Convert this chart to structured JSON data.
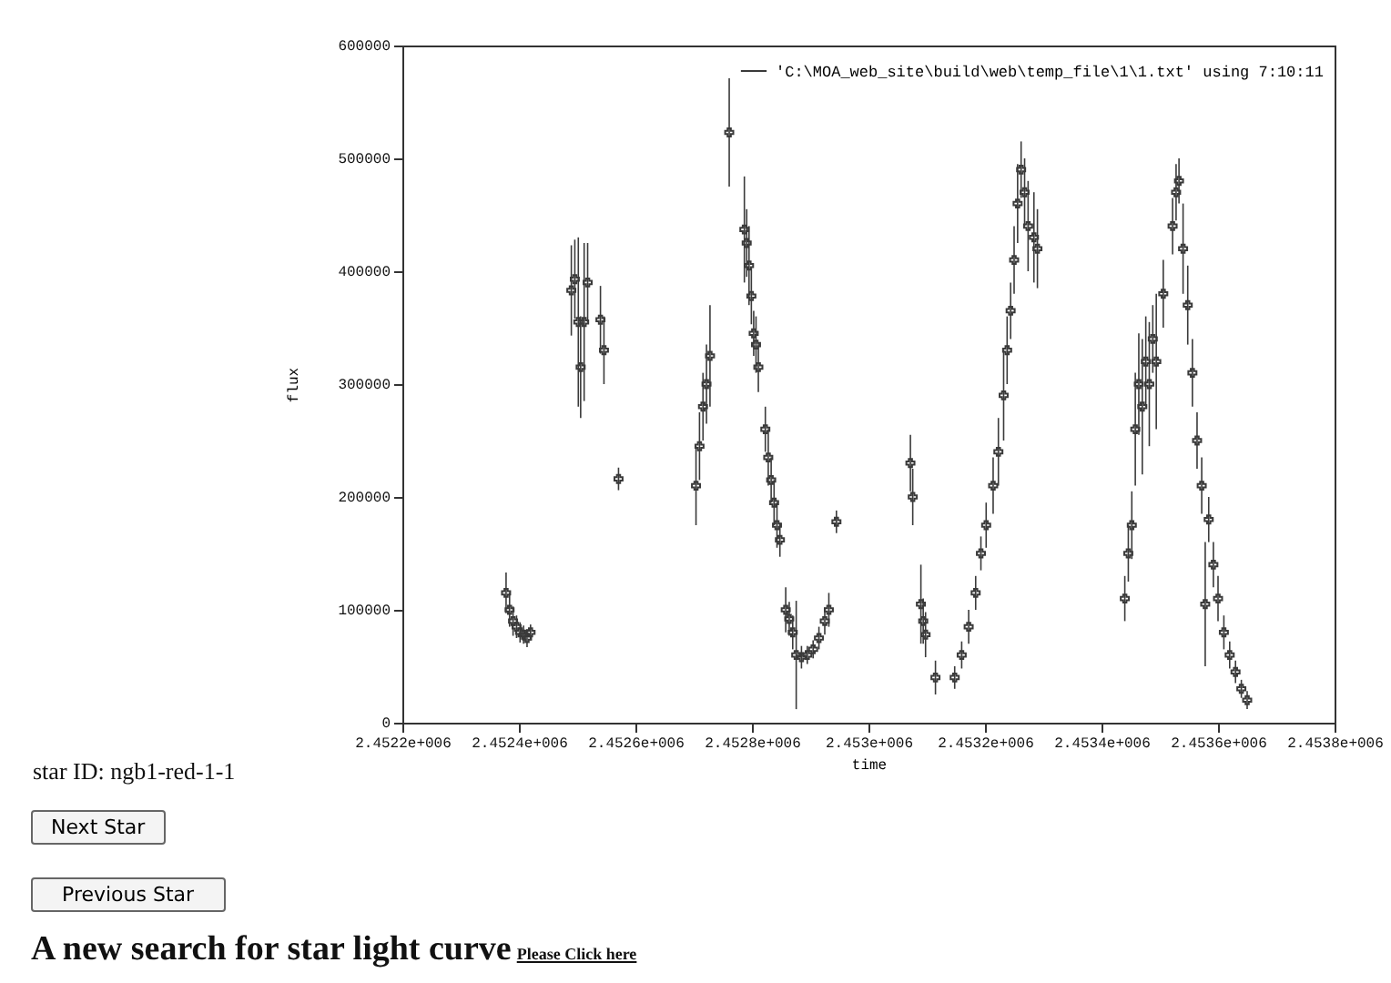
{
  "chart_data": {
    "type": "scatter",
    "xlabel": "time",
    "ylabel": "flux",
    "xlim": [
      2452200,
      2453800
    ],
    "xticks": [
      {
        "value": 2452200,
        "label": "2.4522e+006"
      },
      {
        "value": 2452400,
        "label": "2.4524e+006"
      },
      {
        "value": 2452600,
        "label": "2.4526e+006"
      },
      {
        "value": 2452800,
        "label": "2.4528e+006"
      },
      {
        "value": 2453000,
        "label": "2.453e+006"
      },
      {
        "value": 2453200,
        "label": "2.4532e+006"
      },
      {
        "value": 2453400,
        "label": "2.4534e+006"
      },
      {
        "value": 2453600,
        "label": "2.4536e+006"
      },
      {
        "value": 2453800,
        "label": "2.4538e+006"
      }
    ],
    "ylim": [
      0,
      600000
    ],
    "yticks": [
      0,
      100000,
      200000,
      300000,
      400000,
      500000,
      600000
    ],
    "marker": "cross",
    "legend": "top right",
    "annotations": [
      "star ID: ngb1-red-1-1",
      "Next Star",
      "Previous Star",
      "A new search for star light curve",
      "Please Click here"
    ],
    "series": [
      {
        "name": "'C:\\MOA_web_site\\build\\web\\temp_file\\1\\1.txt' using 7:10:11",
        "color": "#3a3a3a",
        "x": [
          2452378,
          2452384,
          2452390,
          2452396,
          2452402,
          2452408,
          2452414,
          2452420,
          2452490,
          2452496,
          2452502,
          2452506,
          2452512,
          2452518,
          2452540,
          2452546,
          2452571,
          2452704,
          2452710,
          2452716,
          2452722,
          2452728,
          2452761,
          2452787,
          2452791,
          2452795,
          2452799,
          2452803,
          2452807,
          2452811,
          2452823,
          2452828,
          2452833,
          2452838,
          2452843,
          2452848,
          2452858,
          2452864,
          2452870,
          2452876,
          2452885,
          2452895,
          2452905,
          2452915,
          2452925,
          2452932,
          2452945,
          2453072,
          2453076,
          2453090,
          2453094,
          2453098,
          2453115,
          2453148,
          2453160,
          2453172,
          2453184,
          2453193,
          2453202,
          2453214,
          2453223,
          2453232,
          2453238,
          2453244,
          2453250,
          2453256,
          2453262,
          2453268,
          2453274,
          2453284,
          2453290,
          2453440,
          2453446,
          2453452,
          2453458,
          2453464,
          2453470,
          2453476,
          2453482,
          2453488,
          2453494,
          2453506,
          2453522,
          2453528,
          2453533,
          2453540,
          2453548,
          2453556,
          2453564,
          2453572,
          2453578,
          2453584,
          2453592,
          2453600,
          2453610,
          2453620,
          2453630,
          2453640,
          2453650
        ],
        "values": [
          115000,
          100000,
          90000,
          85000,
          80000,
          78000,
          75000,
          80000,
          383000,
          393000,
          355000,
          315000,
          355000,
          390000,
          357000,
          330000,
          216000,
          210000,
          245000,
          280000,
          300000,
          325000,
          523000,
          437000,
          425000,
          405000,
          378000,
          345000,
          335000,
          315000,
          260000,
          235000,
          215000,
          195000,
          175000,
          162000,
          100000,
          92000,
          80000,
          60000,
          58000,
          60000,
          65000,
          75000,
          90000,
          100000,
          178000,
          230000,
          200000,
          105000,
          90000,
          78000,
          40000,
          40000,
          60000,
          85000,
          115000,
          150000,
          175000,
          210000,
          240000,
          290000,
          330000,
          365000,
          410000,
          460000,
          490000,
          470000,
          440000,
          430000,
          420000,
          110000,
          150000,
          175000,
          260000,
          300000,
          280000,
          320000,
          300000,
          340000,
          320000,
          380000,
          440000,
          470000,
          480000,
          420000,
          370000,
          310000,
          250000,
          210000,
          105000,
          180000,
          140000,
          110000,
          80000,
          60000,
          45000,
          30000,
          20000
        ],
        "errors": [
          18000,
          15000,
          13000,
          10000,
          9000,
          8000,
          8000,
          7000,
          40000,
          35000,
          75000,
          45000,
          70000,
          35000,
          30000,
          30000,
          10000,
          35000,
          30000,
          30000,
          35000,
          45000,
          48000,
          47000,
          30000,
          35000,
          25000,
          20000,
          25000,
          22000,
          20000,
          25000,
          20000,
          20000,
          20000,
          15000,
          20000,
          15000,
          15000,
          48000,
          10000,
          8000,
          8000,
          10000,
          12000,
          15000,
          10000,
          25000,
          25000,
          35000,
          20000,
          20000,
          15000,
          10000,
          12000,
          15000,
          15000,
          15000,
          20000,
          25000,
          30000,
          40000,
          30000,
          25000,
          30000,
          35000,
          25000,
          30000,
          40000,
          40000,
          35000,
          20000,
          25000,
          30000,
          50000,
          45000,
          60000,
          40000,
          55000,
          30000,
          60000,
          30000,
          25000,
          25000,
          20000,
          40000,
          35000,
          30000,
          25000,
          25000,
          55000,
          20000,
          20000,
          20000,
          15000,
          12000,
          10000,
          8000,
          8000
        ]
      }
    ]
  }
}
